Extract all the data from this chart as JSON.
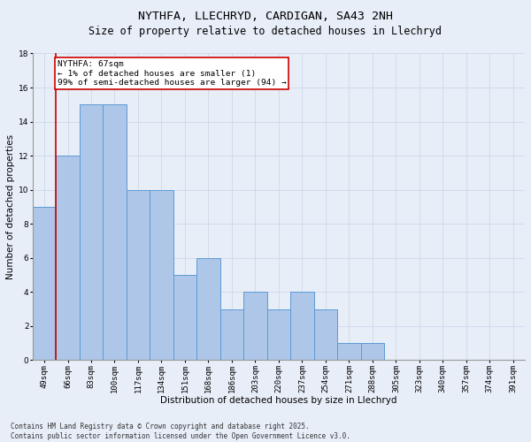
{
  "title1": "NYTHFA, LLECHRYD, CARDIGAN, SA43 2NH",
  "title2": "Size of property relative to detached houses in Llechryd",
  "xlabel": "Distribution of detached houses by size in Llechryd",
  "ylabel": "Number of detached properties",
  "bins": [
    "49sqm",
    "66sqm",
    "83sqm",
    "100sqm",
    "117sqm",
    "134sqm",
    "151sqm",
    "168sqm",
    "186sqm",
    "203sqm",
    "220sqm",
    "237sqm",
    "254sqm",
    "271sqm",
    "288sqm",
    "305sqm",
    "323sqm",
    "340sqm",
    "357sqm",
    "374sqm",
    "391sqm"
  ],
  "values": [
    9,
    12,
    15,
    15,
    10,
    10,
    5,
    6,
    3,
    4,
    3,
    4,
    3,
    1,
    1,
    0,
    0,
    0,
    0,
    0,
    0
  ],
  "bar_color": "#aec6e8",
  "bar_edge_color": "#5b9bd5",
  "vline_color": "#cc0000",
  "annotation_text": "NYTHFA: 67sqm\n← 1% of detached houses are smaller (1)\n99% of semi-detached houses are larger (94) →",
  "annotation_box_color": "white",
  "annotation_box_edge_color": "#cc0000",
  "ylim": [
    0,
    18
  ],
  "yticks": [
    0,
    2,
    4,
    6,
    8,
    10,
    12,
    14,
    16,
    18
  ],
  "grid_color": "#c8d4e8",
  "background_color": "#e8eef8",
  "footer": "Contains HM Land Registry data © Crown copyright and database right 2025.\nContains public sector information licensed under the Open Government Licence v3.0.",
  "title_fontsize": 9.5,
  "subtitle_fontsize": 8.5,
  "axis_label_fontsize": 7.5,
  "tick_fontsize": 6.5,
  "footer_fontsize": 5.5,
  "annotation_fontsize": 6.8
}
